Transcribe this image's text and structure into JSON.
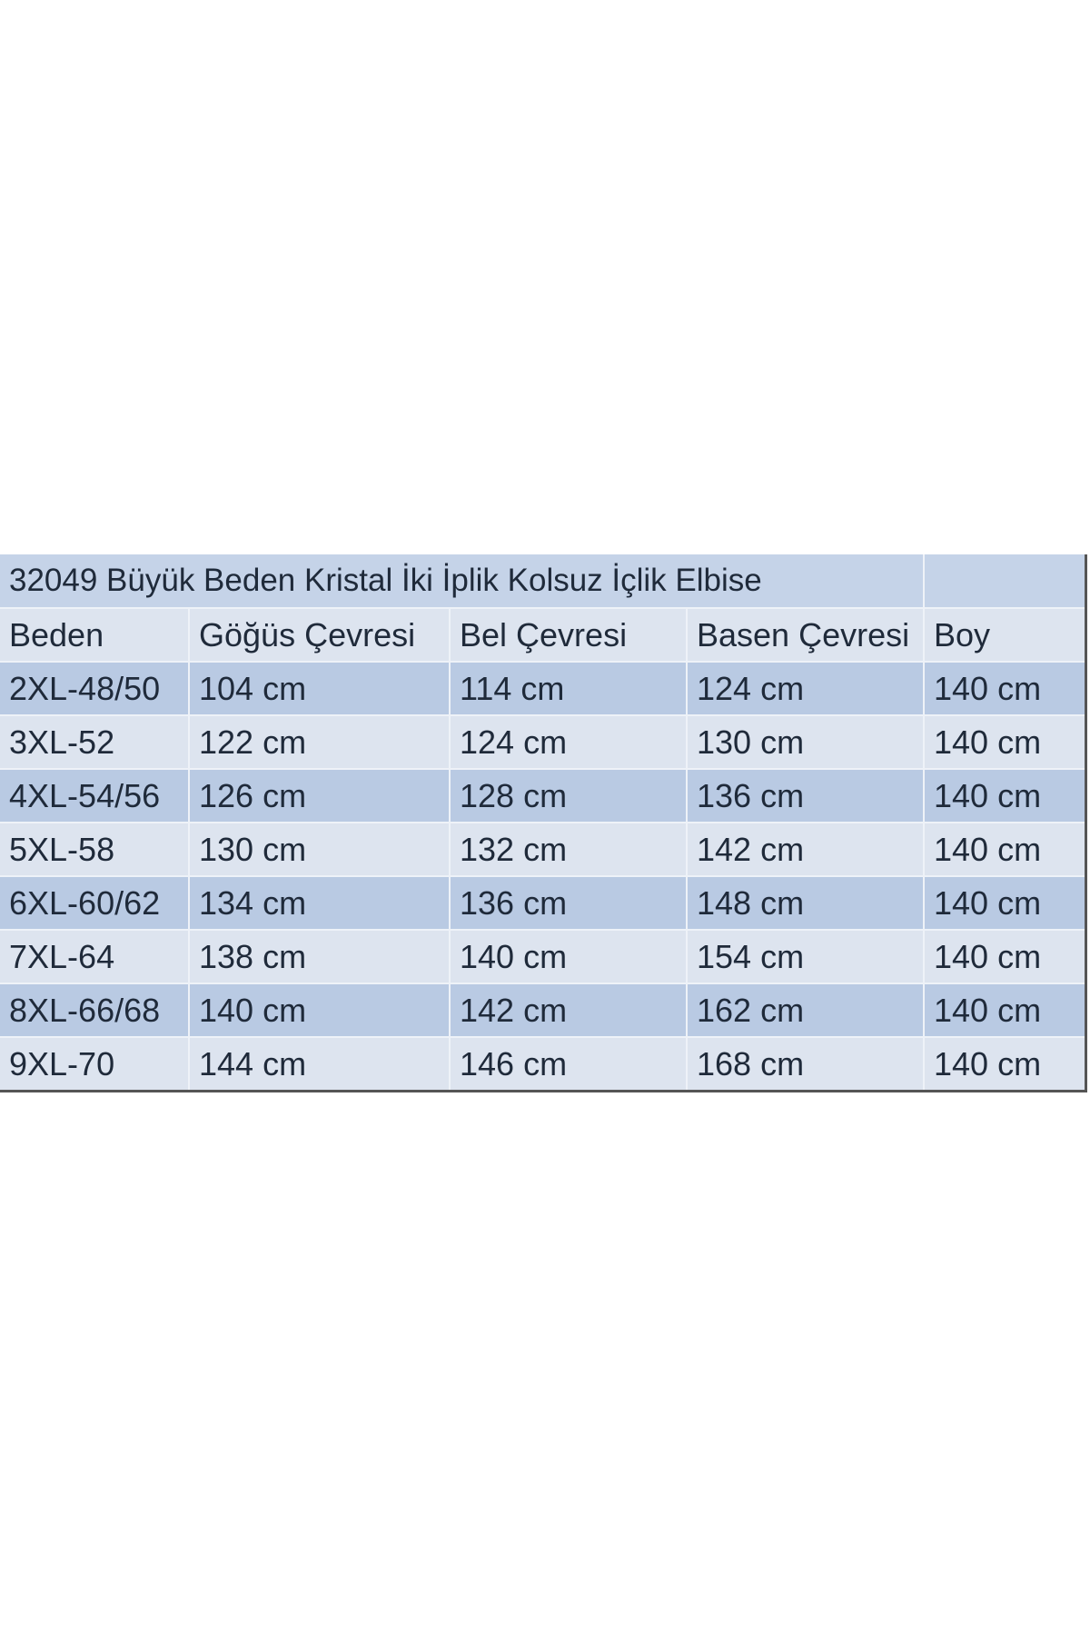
{
  "title": "32049 Büyük Beden Kristal İki İplik Kolsuz İçlik Elbise",
  "headers": [
    "Beden",
    "Göğüs Çevresi",
    "Bel Çevresi",
    "Basen Çevresi",
    "Boy"
  ],
  "rows": [
    [
      "2XL-48/50",
      "104 cm",
      "114 cm",
      "124 cm",
      "140 cm"
    ],
    [
      "3XL-52",
      "122 cm",
      "124 cm",
      "130 cm",
      "140 cm"
    ],
    [
      "4XL-54/56",
      "126 cm",
      "128 cm",
      "136 cm",
      "140 cm"
    ],
    [
      "5XL-58",
      "130 cm",
      "132 cm",
      "142 cm",
      "140 cm"
    ],
    [
      "6XL-60/62",
      "134 cm",
      "136 cm",
      "148 cm",
      "140 cm"
    ],
    [
      "7XL-64",
      "138 cm",
      "140 cm",
      "154 cm",
      "140 cm"
    ],
    [
      "8XL-66/68",
      "140 cm",
      "142 cm",
      "162 cm",
      "140 cm"
    ],
    [
      "9XL-70",
      "144 cm",
      "146 cm",
      "168 cm",
      "140 cm"
    ]
  ],
  "colors": {
    "band_dark": "#b9cae3",
    "band_light": "#dde4ef",
    "title_bg": "#c5d3e8",
    "text": "#1f2a3a"
  }
}
